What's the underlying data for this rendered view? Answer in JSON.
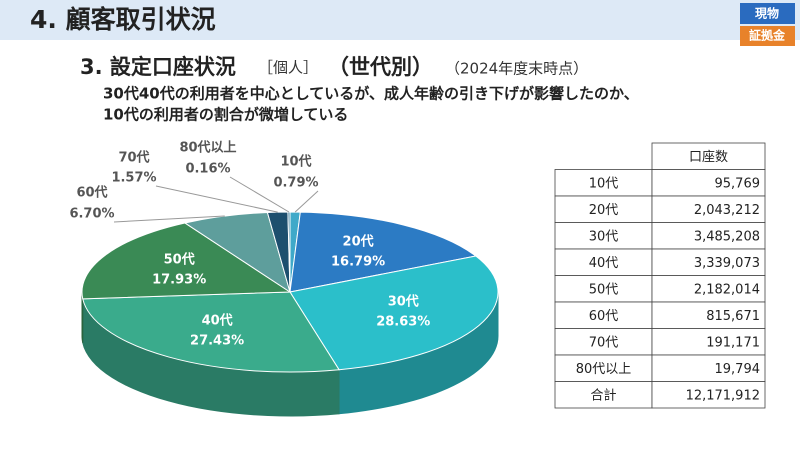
{
  "header": {
    "title": "4. 顧客取引状況",
    "badges": [
      "現物",
      "証拠金"
    ]
  },
  "subtitle": {
    "main": "3. 設定口座状況",
    "scope": "［個人］",
    "group": "（世代別）",
    "date": "（2024年度末時点）"
  },
  "description": [
    "30代40代の利用者を中心としているが、成人年齢の引き下げが影響したのか、",
    "10代の利用者の割合が微増している"
  ],
  "chart_data": {
    "type": "pie",
    "categories": [
      "10代",
      "20代",
      "30代",
      "40代",
      "50代",
      "60代",
      "70代",
      "80代以上"
    ],
    "values": [
      0.79,
      16.79,
      28.63,
      27.43,
      17.93,
      6.7,
      1.57,
      0.16
    ],
    "value_labels": [
      "0.79%",
      "16.79%",
      "28.63%",
      "27.43%",
      "17.93%",
      "6.70%",
      "1.57%",
      "0.16%"
    ],
    "colors": [
      "#3fa9c9",
      "#2c7bc4",
      "#2bbfca",
      "#3aab8c",
      "#3a8a55",
      "#5e9e9c",
      "#1d4f6e",
      "#3c7f9e"
    ]
  },
  "table": {
    "header": [
      "",
      "口座数"
    ],
    "rows": [
      [
        "10代",
        "95,769"
      ],
      [
        "20代",
        "2,043,212"
      ],
      [
        "30代",
        "3,485,208"
      ],
      [
        "40代",
        "3,339,073"
      ],
      [
        "50代",
        "2,182,014"
      ],
      [
        "60代",
        "815,671"
      ],
      [
        "70代",
        "191,171"
      ],
      [
        "80代以上",
        "19,794"
      ],
      [
        "合計",
        "12,171,912"
      ]
    ]
  }
}
